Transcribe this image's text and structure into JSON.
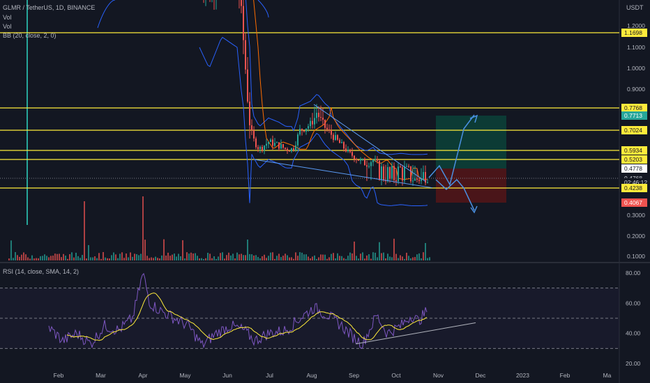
{
  "legend": {
    "symbol": "GLMR / TetherUS, 1D, BINANCE",
    "vol1": "Vol",
    "vol2": "Vol",
    "bb": "BB (20, close, 2, 0)",
    "rsi": "RSI (14, close, SMA, 14, 2)"
  },
  "colors": {
    "background": "#131722",
    "up": "#26a69a",
    "down": "#ef5350",
    "hline": "#ffeb3b",
    "bb": "#2962ff",
    "ma": "#ff6d00",
    "rsi": "#7e57c2",
    "rsi_ma": "#ffeb3b",
    "trend": "#5b9cf6",
    "long_zone": "#0c3b35",
    "stop_zone": "#4a1519"
  },
  "currency": "USDT",
  "price_axis_ticks": [
    "1.2000",
    "1.1000",
    "1.0000",
    "0.9000",
    "0.3000",
    "0.2000",
    "0.1000"
  ],
  "price_tags": [
    {
      "text": "1.1698",
      "value": 1.1698,
      "bg": "#ffeb3b",
      "fg": "#131722"
    },
    {
      "text": "0.7768",
      "value": 0.7768,
      "bg": "#ffeb3b",
      "fg": "#131722"
    },
    {
      "text": "0.7713",
      "value": 0.7713,
      "bg": "#26a69a",
      "fg": "#ffffff"
    },
    {
      "text": "0.7024",
      "value": 0.7024,
      "bg": "#ffeb3b",
      "fg": "#131722"
    },
    {
      "text": "0.5934",
      "value": 0.5934,
      "bg": "#ffeb3b",
      "fg": "#131722"
    },
    {
      "text": "0.5203",
      "value": 0.5203,
      "bg": "#ffeb3b",
      "fg": "#131722"
    },
    {
      "text": "0.4778",
      "value": 0.4778,
      "bg": "#ffffff",
      "fg": "#131722"
    },
    {
      "text": "0.4768",
      "value": 0.4768,
      "bg": "#131722",
      "fg": "#d1d4dc"
    },
    {
      "text": "02:46:12",
      "value": 0.455,
      "bg": "#131722",
      "fg": "#d1d4dc"
    },
    {
      "text": "0.4238",
      "value": 0.4238,
      "bg": "#ffeb3b",
      "fg": "#131722"
    },
    {
      "text": "0.4067",
      "value": 0.4067,
      "bg": "#ef5350",
      "fg": "#ffffff"
    }
  ],
  "horizontal_levels": [
    1.1698,
    0.7768,
    0.7024,
    0.5934,
    0.5203,
    0.4238
  ],
  "rsi_axis_ticks": [
    "80.00",
    "60.00",
    "40.00",
    "20.00"
  ],
  "time_axis": [
    "Feb",
    "Mar",
    "Apr",
    "May",
    "Jun",
    "Jul",
    "Aug",
    "Sep",
    "Oct",
    "Nov",
    "Dec",
    "2023",
    "Feb",
    "Ma"
  ],
  "chart_data": [
    {
      "type": "line",
      "title": "GLMR / TetherUS, 1D, BINANCE",
      "x_unit": "month",
      "x": [
        "May",
        "Jun",
        "Jul",
        "Aug",
        "Sep",
        "Oct"
      ],
      "series": [
        {
          "name": "GLMR / TetherUS",
          "values": [
            1.5,
            1.2,
            0.6,
            0.75,
            0.55,
            0.476
          ]
        }
      ],
      "horizontal_levels": [
        1.1698,
        0.7768,
        0.7024,
        0.5934,
        0.5203,
        0.4238
      ],
      "position": {
        "entry": 0.4778,
        "target": 0.7713,
        "stop": 0.4067
      },
      "current_price": 0.4768,
      "grid": false
    },
    {
      "type": "line",
      "title": "RSI (14, close, SMA, 14, 2)",
      "x": [
        "Feb",
        "Mar",
        "Apr",
        "May",
        "Jun",
        "Jul",
        "Aug",
        "Sep",
        "Oct"
      ],
      "series": [
        {
          "name": "RSI",
          "values": [
            44,
            33,
            65,
            45,
            32,
            42,
            57,
            36,
            52
          ]
        },
        {
          "name": "RSI SMA",
          "values": [
            42,
            38,
            60,
            48,
            36,
            40,
            55,
            40,
            47
          ]
        }
      ],
      "ylim": [
        20,
        80
      ],
      "bands": [
        70,
        50,
        30
      ]
    }
  ]
}
